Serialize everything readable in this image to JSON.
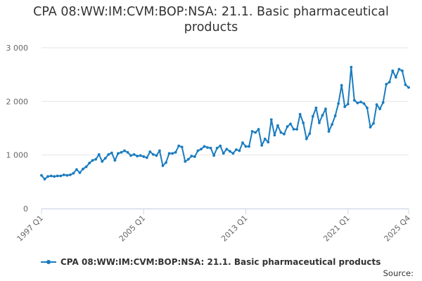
{
  "chart_data": {
    "type": "line",
    "title_line1": "CPA 08:WW:IM:CVM:BOP:NSA: 21.1. Basic pharmaceutical",
    "title_line2": "products",
    "xlabel": "",
    "ylabel": "",
    "ylim": [
      0,
      3000
    ],
    "y_ticks": [
      0,
      1000,
      2000,
      3000
    ],
    "y_tick_labels": [
      "0",
      "1 000",
      "2 000",
      "3 000"
    ],
    "x_tick_labels": [
      "1997 Q1",
      "2005 Q1",
      "2013 Q1",
      "2021 Q1",
      "2025 Q4"
    ],
    "x_tick_index": [
      0,
      32,
      64,
      96,
      115
    ],
    "grid": true,
    "legend_position": "bottom",
    "series": [
      {
        "name": "CPA 08:WW:IM:CVM:BOP:NSA: 21.1. Basic pharmaceutical products",
        "color": "#1a7cbf",
        "values": [
          620,
          550,
          600,
          610,
          600,
          610,
          610,
          630,
          620,
          630,
          660,
          730,
          670,
          740,
          780,
          850,
          900,
          920,
          1010,
          880,
          940,
          1010,
          1040,
          900,
          1030,
          1050,
          1080,
          1050,
          990,
          1010,
          980,
          990,
          970,
          950,
          1060,
          1010,
          990,
          1080,
          800,
          860,
          1030,
          1030,
          1050,
          1170,
          1150,
          880,
          920,
          980,
          970,
          1080,
          1110,
          1160,
          1140,
          1130,
          990,
          1130,
          1170,
          1030,
          1110,
          1070,
          1030,
          1100,
          1080,
          1230,
          1160,
          1160,
          1440,
          1420,
          1480,
          1180,
          1300,
          1240,
          1660,
          1370,
          1550,
          1420,
          1390,
          1530,
          1580,
          1480,
          1480,
          1760,
          1600,
          1300,
          1400,
          1720,
          1880,
          1600,
          1740,
          1860,
          1440,
          1570,
          1730,
          1960,
          2300,
          1900,
          1950,
          2640,
          2020,
          1970,
          1990,
          1960,
          1880,
          1520,
          1590,
          1940,
          1860,
          1980,
          2320,
          2360,
          2570,
          2450,
          2600,
          2570,
          2310,
          2260
        ]
      }
    ]
  },
  "legend": {
    "label": "CPA 08:WW:IM:CVM:BOP:NSA: 21.1. Basic pharmaceutical products"
  },
  "footer": {
    "source_label": "Source:"
  }
}
